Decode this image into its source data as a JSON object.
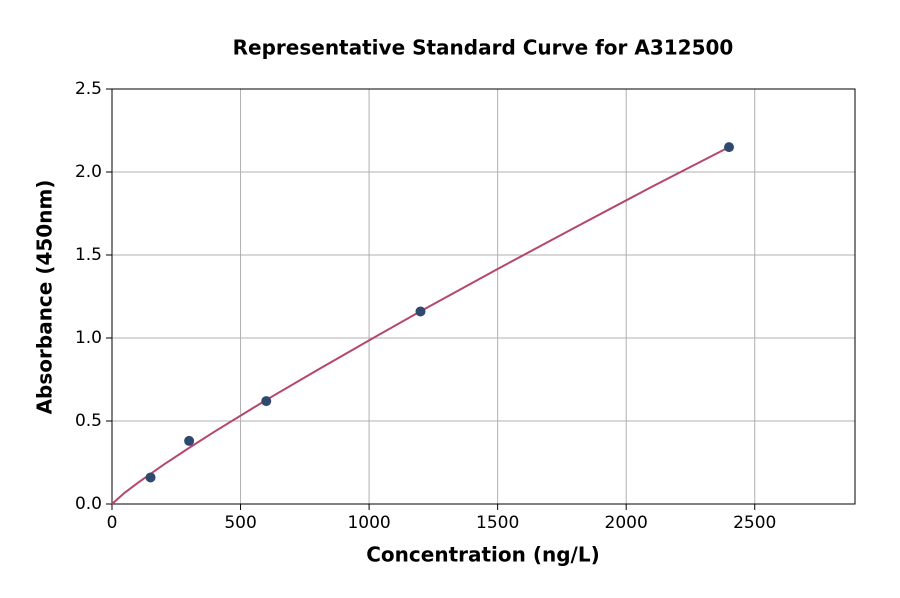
{
  "chart_data": {
    "type": "scatter",
    "title": "Representative Standard Curve for A312500",
    "x_label": "Concentration (ng/L)",
    "y_label": "Absorbance (450nm)",
    "xlim": [
      0,
      2890
    ],
    "ylim": [
      0,
      2.5
    ],
    "xticks": [
      0,
      500,
      1000,
      1500,
      2000,
      2500
    ],
    "yticks": [
      {
        "value": 0,
        "label": "0.0"
      },
      0.5,
      {
        "value": 1,
        "label": "1.0"
      },
      1.5,
      {
        "value": 2,
        "label": "2.0"
      },
      2.5
    ],
    "grid": true,
    "series": [
      {
        "type": "line",
        "color": "#b5476b",
        "x": [
          0,
          50,
          100,
          200,
          300,
          400,
          600,
          800,
          1000,
          1200,
          1500,
          1800,
          2100,
          2400
        ],
        "values": [
          0,
          0.069,
          0.127,
          0.236,
          0.338,
          0.437,
          0.627,
          0.808,
          0.986,
          1.161,
          1.416,
          1.665,
          1.911,
          2.15
        ]
      },
      {
        "type": "scatter",
        "color": "#2e4a6e",
        "x": [
          150,
          300,
          600,
          1200,
          2400
        ],
        "values": [
          0.16,
          0.38,
          0.62,
          1.16,
          2.15
        ]
      }
    ]
  }
}
